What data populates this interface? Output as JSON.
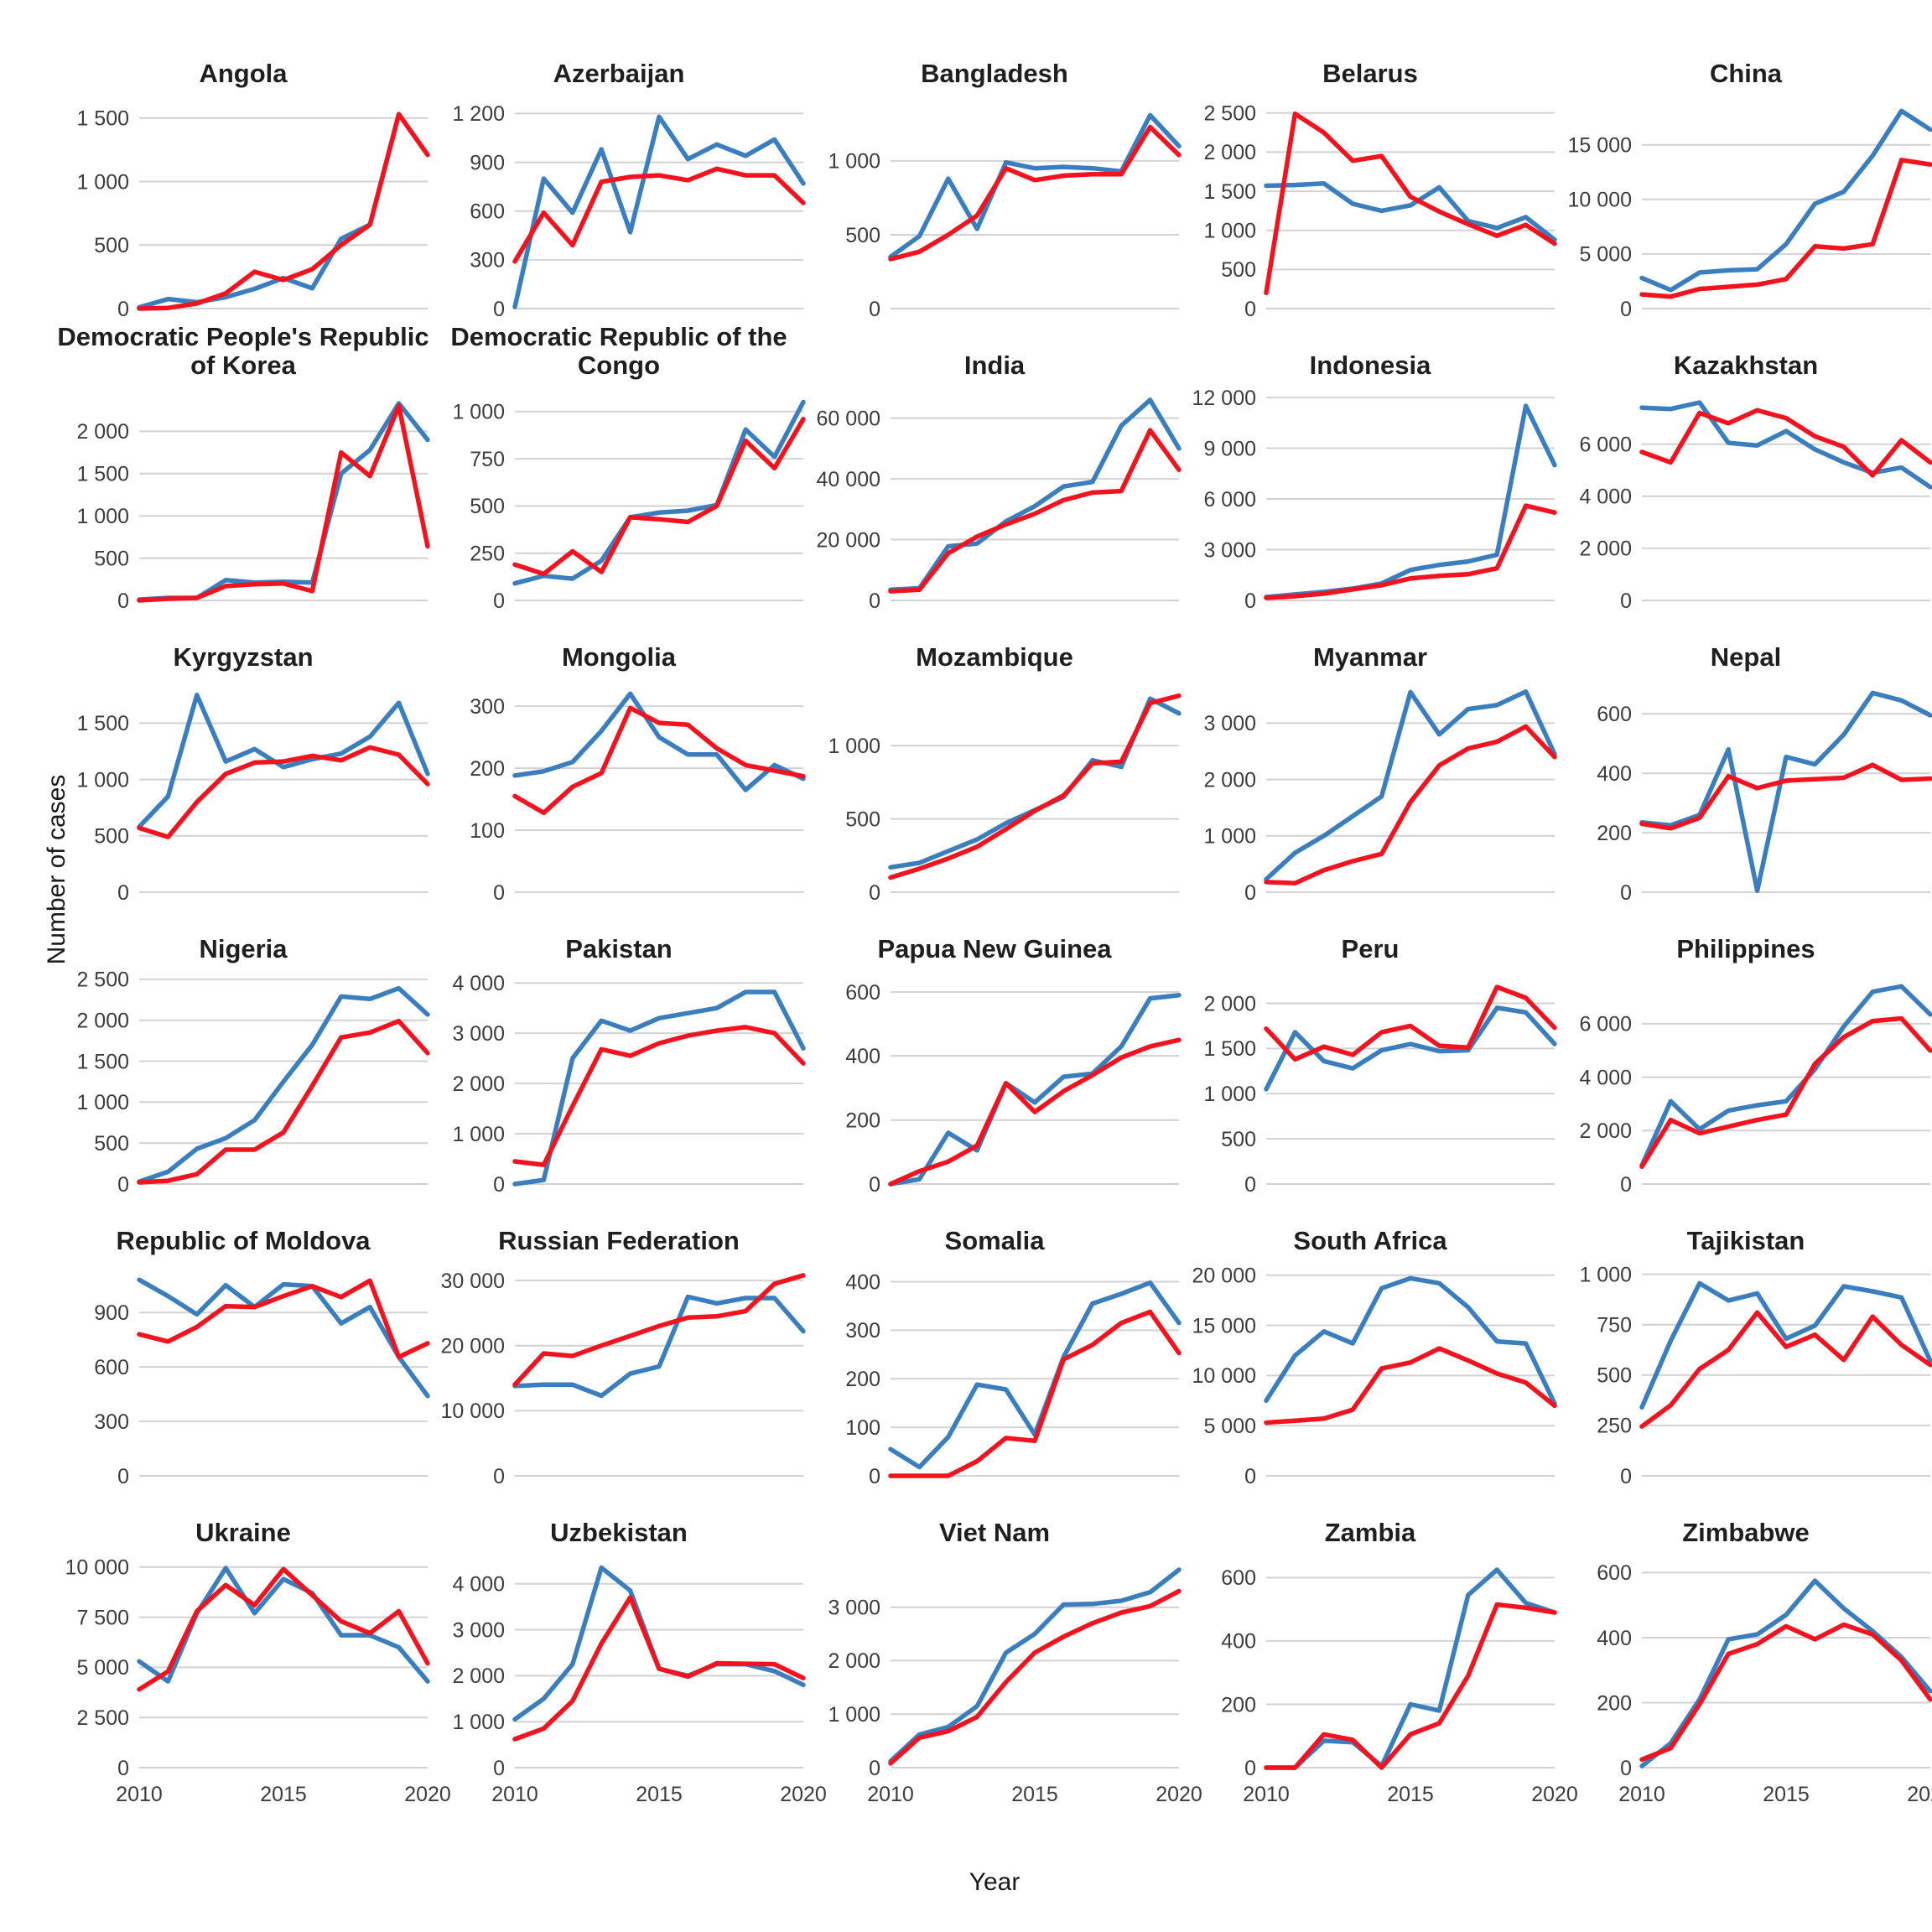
{
  "figure": {
    "y_axis_title": "Number of cases",
    "x_axis_title": "Year",
    "x_tick_labels": [
      "2010",
      "2015",
      "2020"
    ]
  },
  "colors": {
    "blue_series": "#3a7ebf",
    "red_series": "#f2131f",
    "gridline": "#d2d2d2",
    "tick_label": "#3d3d3d",
    "title": "#1f1f1f"
  },
  "chart_data": {
    "type": "line",
    "layout": "facet_grid_6x5",
    "x": [
      2010,
      2011,
      2012,
      2013,
      2014,
      2015,
      2016,
      2017,
      2018,
      2019,
      2020
    ],
    "x_ticks": [
      2010,
      2015,
      2020
    ],
    "grid": "horizontal-only",
    "legend_position": "none",
    "series_names": [
      "blue",
      "red"
    ],
    "panels": [
      {
        "title": "Angola",
        "y_ticks": [
          0,
          500,
          1000,
          1500
        ],
        "y_max": 1650,
        "blue": [
          10,
          75,
          50,
          90,
          155,
          240,
          160,
          550,
          660,
          1530,
          1210
        ],
        "red": [
          0,
          5,
          40,
          120,
          290,
          225,
          310,
          500,
          660,
          1530,
          1210
        ]
      },
      {
        "title": "Azerbaijan",
        "y_ticks": [
          0,
          300,
          600,
          900,
          1200
        ],
        "y_max": 1290,
        "blue": [
          10,
          800,
          590,
          980,
          470,
          1180,
          920,
          1010,
          940,
          1040,
          770
        ],
        "red": [
          290,
          590,
          390,
          780,
          810,
          820,
          790,
          860,
          820,
          820,
          650
        ]
      },
      {
        "title": "Bangladesh",
        "y_ticks": [
          0,
          500,
          1000
        ],
        "y_max": 1420,
        "blue": [
          350,
          490,
          880,
          540,
          990,
          950,
          960,
          950,
          930,
          1310,
          1100
        ],
        "red": [
          335,
          385,
          500,
          630,
          950,
          870,
          900,
          910,
          910,
          1230,
          1040
        ]
      },
      {
        "title": "Belarus",
        "y_ticks": [
          0,
          500,
          1000,
          1500,
          2000,
          2500
        ],
        "y_max": 2680,
        "blue": [
          1570,
          1580,
          1600,
          1340,
          1250,
          1320,
          1550,
          1120,
          1030,
          1170,
          880
        ],
        "red": [
          200,
          2490,
          2250,
          1890,
          1950,
          1430,
          1240,
          1080,
          930,
          1070,
          830
        ]
      },
      {
        "title": "China",
        "y_ticks": [
          0,
          5000,
          10000,
          15000
        ],
        "y_max": 19200,
        "blue": [
          2800,
          1700,
          3300,
          3500,
          3600,
          5900,
          9600,
          10700,
          14000,
          18100,
          16400
        ],
        "red": [
          1300,
          1100,
          1800,
          2000,
          2200,
          2700,
          5700,
          5500,
          5900,
          13600,
          13200
        ]
      },
      {
        "title": "Democratic People's Republic of Korea",
        "y_ticks": [
          0,
          500,
          1000,
          1500,
          2000
        ],
        "y_max": 2480,
        "blue": [
          10,
          30,
          30,
          240,
          210,
          220,
          210,
          1500,
          1780,
          2330,
          1900
        ],
        "red": [
          0,
          20,
          30,
          170,
          190,
          200,
          110,
          1750,
          1470,
          2300,
          640
        ]
      },
      {
        "title": "Democratic Republic of the Congo",
        "y_ticks": [
          0,
          250,
          500,
          750,
          1000
        ],
        "y_max": 1110,
        "blue": [
          90,
          130,
          115,
          210,
          440,
          465,
          475,
          505,
          905,
          760,
          1050
        ],
        "red": [
          190,
          140,
          260,
          150,
          440,
          430,
          415,
          500,
          845,
          700,
          960
        ]
      },
      {
        "title": "India",
        "y_ticks": [
          0,
          20000,
          40000,
          60000
        ],
        "y_max": 69000,
        "blue": [
          3500,
          4000,
          17800,
          18700,
          26000,
          31000,
          37500,
          39000,
          57500,
          66000,
          50000
        ],
        "red": [
          3000,
          3500,
          15500,
          21000,
          25000,
          28500,
          33000,
          35500,
          36000,
          56000,
          43000
        ]
      },
      {
        "title": "Indonesia",
        "y_ticks": [
          0,
          3000,
          6000,
          9000,
          12000
        ],
        "y_max": 12400,
        "blue": [
          200,
          350,
          500,
          700,
          1000,
          1800,
          2100,
          2300,
          2700,
          11500,
          8000
        ],
        "red": [
          150,
          250,
          400,
          650,
          900,
          1300,
          1450,
          1550,
          1900,
          5600,
          5200
        ]
      },
      {
        "title": "Kazakhstan",
        "y_ticks": [
          0,
          2000,
          4000,
          6000
        ],
        "y_max": 8050,
        "blue": [
          7400,
          7350,
          7600,
          6050,
          5950,
          6500,
          5800,
          5300,
          4900,
          5100,
          4350
        ],
        "red": [
          5700,
          5300,
          7200,
          6800,
          7300,
          7000,
          6300,
          5900,
          4800,
          6150,
          5300
        ]
      },
      {
        "title": "Kyrgyzstan",
        "y_ticks": [
          0,
          500,
          1000,
          1500
        ],
        "y_max": 1860,
        "blue": [
          580,
          850,
          1750,
          1160,
          1270,
          1110,
          1180,
          1230,
          1380,
          1680,
          1050
        ],
        "red": [
          570,
          490,
          800,
          1050,
          1150,
          1160,
          1210,
          1170,
          1285,
          1220,
          960
        ]
      },
      {
        "title": "Mongolia",
        "y_ticks": [
          0,
          100,
          200,
          300
        ],
        "y_max": 338,
        "blue": [
          188,
          195,
          210,
          260,
          320,
          250,
          222,
          222,
          165,
          205,
          183
        ],
        "red": [
          155,
          128,
          170,
          192,
          297,
          273,
          270,
          232,
          205,
          196,
          187
        ]
      },
      {
        "title": "Mozambique",
        "y_ticks": [
          0,
          500,
          1000
        ],
        "y_max": 1430,
        "blue": [
          170,
          200,
          280,
          360,
          470,
          560,
          650,
          900,
          855,
          1320,
          1220
        ],
        "red": [
          100,
          160,
          230,
          310,
          430,
          555,
          660,
          880,
          890,
          1290,
          1340
        ]
      },
      {
        "title": "Myanmar",
        "y_ticks": [
          0,
          1000,
          2000,
          3000
        ],
        "y_max": 3720,
        "blue": [
          230,
          700,
          1000,
          1350,
          1700,
          3550,
          2800,
          3250,
          3320,
          3560,
          2450
        ],
        "red": [
          180,
          160,
          390,
          550,
          680,
          1600,
          2250,
          2550,
          2670,
          2940,
          2400
        ]
      },
      {
        "title": "Nepal",
        "y_ticks": [
          0,
          200,
          400,
          600
        ],
        "y_max": 705,
        "blue": [
          235,
          225,
          260,
          480,
          5,
          455,
          430,
          530,
          670,
          645,
          595
        ],
        "red": [
          230,
          215,
          250,
          390,
          350,
          375,
          380,
          385,
          428,
          378,
          382
        ]
      },
      {
        "title": "Nigeria",
        "y_ticks": [
          0,
          500,
          1000,
          1500,
          2000,
          2500
        ],
        "y_max": 2560,
        "blue": [
          30,
          150,
          430,
          560,
          780,
          1250,
          1700,
          2290,
          2260,
          2390,
          2070
        ],
        "red": [
          20,
          40,
          120,
          420,
          420,
          630,
          1200,
          1790,
          1850,
          1990,
          1600
        ]
      },
      {
        "title": "Pakistan",
        "y_ticks": [
          0,
          1000,
          2000,
          3000,
          4000
        ],
        "y_max": 4170,
        "blue": [
          0,
          80,
          2500,
          3250,
          3050,
          3300,
          3400,
          3500,
          3820,
          3820,
          2700
        ],
        "red": [
          450,
          380,
          1550,
          2680,
          2550,
          2800,
          2950,
          3050,
          3120,
          3000,
          2400
        ]
      },
      {
        "title": "Papua New Guinea",
        "y_ticks": [
          0,
          200,
          400,
          600
        ],
        "y_max": 655,
        "blue": [
          0,
          15,
          160,
          105,
          315,
          255,
          335,
          345,
          430,
          580,
          590
        ],
        "red": [
          0,
          40,
          70,
          120,
          315,
          225,
          290,
          340,
          395,
          430,
          450
        ]
      },
      {
        "title": "Peru",
        "y_ticks": [
          0,
          500,
          1000,
          1500,
          2000
        ],
        "y_max": 2320,
        "blue": [
          1050,
          1680,
          1360,
          1280,
          1480,
          1550,
          1470,
          1480,
          1950,
          1900,
          1550
        ],
        "red": [
          1720,
          1380,
          1520,
          1430,
          1680,
          1750,
          1530,
          1510,
          2180,
          2060,
          1730
        ]
      },
      {
        "title": "Philippines",
        "y_ticks": [
          0,
          2000,
          4000,
          6000
        ],
        "y_max": 7850,
        "blue": [
          700,
          3100,
          2050,
          2750,
          2950,
          3100,
          4300,
          5900,
          7200,
          7400,
          6350
        ],
        "red": [
          650,
          2400,
          1900,
          2150,
          2400,
          2600,
          4500,
          5500,
          6100,
          6200,
          5000
        ]
      },
      {
        "title": "Republic of Moldova",
        "y_ticks": [
          0,
          300,
          600,
          900
        ],
        "y_max": 1155,
        "blue": [
          1080,
          990,
          890,
          1050,
          930,
          1055,
          1045,
          840,
          930,
          655,
          440
        ],
        "red": [
          780,
          740,
          820,
          935,
          930,
          990,
          1045,
          985,
          1075,
          655,
          730
        ]
      },
      {
        "title": "Russian Federation",
        "y_ticks": [
          0,
          10000,
          20000,
          30000
        ],
        "y_max": 32200,
        "blue": [
          13800,
          14000,
          14000,
          12300,
          15700,
          16800,
          27500,
          26500,
          27300,
          27300,
          22200
        ],
        "red": [
          14000,
          18800,
          18400,
          20000,
          21500,
          23000,
          24300,
          24500,
          25300,
          29500,
          30800
        ]
      },
      {
        "title": "Somalia",
        "y_ticks": [
          0,
          100,
          200,
          300,
          400
        ],
        "y_max": 432,
        "blue": [
          55,
          18,
          80,
          188,
          178,
          85,
          245,
          355,
          375,
          398,
          315
        ],
        "red": [
          0,
          0,
          0,
          30,
          78,
          72,
          240,
          270,
          315,
          338,
          253
        ]
      },
      {
        "title": "South Africa",
        "y_ticks": [
          0,
          5000,
          10000,
          15000,
          20000
        ],
        "y_max": 20900,
        "blue": [
          7500,
          12000,
          14400,
          13200,
          18700,
          19700,
          19200,
          16800,
          13400,
          13200,
          7200
        ],
        "red": [
          5300,
          5500,
          5700,
          6600,
          10700,
          11300,
          12700,
          11500,
          10200,
          9300,
          7000
        ]
      },
      {
        "title": "Tajikistan",
        "y_ticks": [
          0,
          250,
          500,
          750,
          1000
        ],
        "y_max": 1040,
        "blue": [
          340,
          670,
          955,
          870,
          905,
          680,
          745,
          940,
          915,
          885,
          570
        ],
        "red": [
          245,
          350,
          530,
          625,
          810,
          640,
          700,
          575,
          790,
          650,
          550
        ]
      },
      {
        "title": "Ukraine",
        "y_ticks": [
          0,
          2500,
          5000,
          7500,
          10000
        ],
        "y_max": 10450,
        "blue": [
          5300,
          4300,
          7700,
          9950,
          7700,
          9400,
          8700,
          6600,
          6600,
          6000,
          4300
        ],
        "red": [
          3900,
          4800,
          7800,
          9100,
          8100,
          9900,
          8600,
          7300,
          6700,
          7800,
          5200
        ]
      },
      {
        "title": "Uzbekistan",
        "y_ticks": [
          0,
          1000,
          2000,
          3000,
          4000
        ],
        "y_max": 4560,
        "blue": [
          1050,
          1500,
          2250,
          4350,
          3850,
          2150,
          2000,
          2250,
          2250,
          2100,
          1800
        ],
        "red": [
          620,
          850,
          1450,
          2700,
          3700,
          2150,
          1980,
          2270,
          2260,
          2250,
          1950
        ]
      },
      {
        "title": "Viet Nam",
        "y_ticks": [
          0,
          1000,
          2000,
          3000
        ],
        "y_max": 3920,
        "blue": [
          120,
          620,
          760,
          1150,
          2150,
          2500,
          3050,
          3060,
          3120,
          3280,
          3700
        ],
        "red": [
          80,
          560,
          680,
          950,
          1600,
          2150,
          2450,
          2700,
          2900,
          3020,
          3300
        ]
      },
      {
        "title": "Zambia",
        "y_ticks": [
          0,
          200,
          400,
          600
        ],
        "y_max": 662,
        "blue": [
          0,
          0,
          85,
          80,
          5,
          200,
          180,
          545,
          625,
          520,
          490
        ],
        "red": [
          0,
          0,
          105,
          88,
          0,
          105,
          140,
          290,
          515,
          505,
          490
        ]
      },
      {
        "title": "Zimbabwe",
        "y_ticks": [
          0,
          200,
          400,
          600
        ],
        "y_max": 645,
        "blue": [
          5,
          75,
          210,
          395,
          410,
          470,
          575,
          490,
          420,
          340,
          235
        ],
        "red": [
          25,
          60,
          195,
          350,
          380,
          435,
          395,
          440,
          410,
          330,
          210
        ]
      }
    ]
  }
}
